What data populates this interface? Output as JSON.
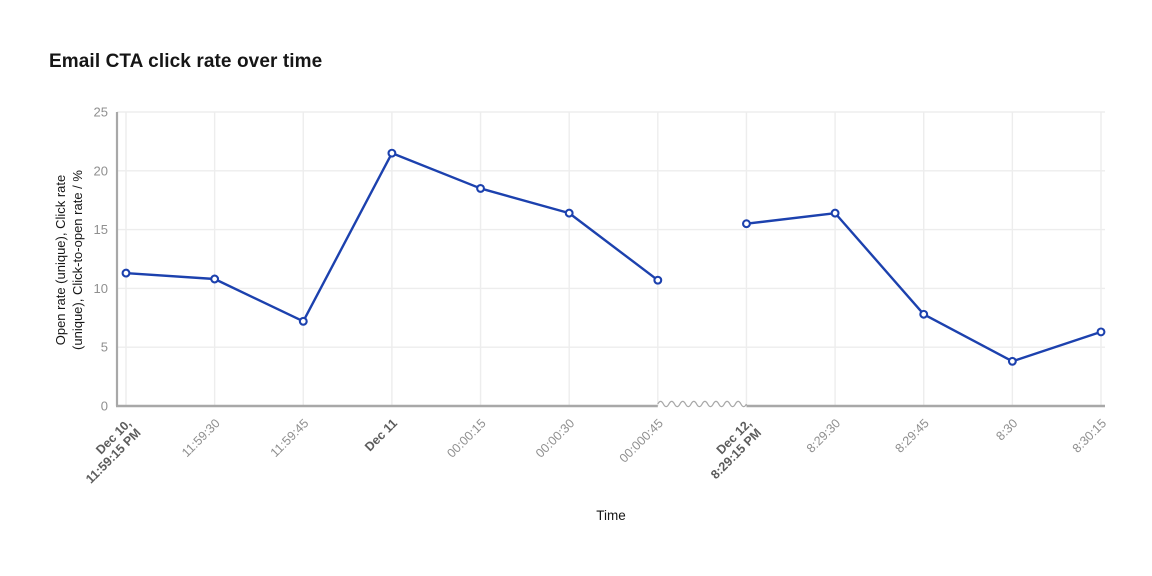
{
  "chart_data": {
    "type": "line",
    "title": "Email CTA click rate over time",
    "xlabel": "Time",
    "ylabel_lines": [
      "Open rate (unique), Click rate",
      "(unique), Click-to-open rate / %"
    ],
    "ylim": [
      0,
      25
    ],
    "yticks": [
      0,
      5,
      10,
      15,
      20,
      25
    ],
    "categories": [
      [
        "Dec 10,",
        "11:59:15 PM"
      ],
      [
        "11:59:30"
      ],
      [
        "11:59:45"
      ],
      [
        "Dec 11"
      ],
      [
        "00:00:15"
      ],
      [
        "00:00:30"
      ],
      [
        "00:000:45"
      ],
      [
        "Dec 12,",
        "8:29:15 PM"
      ],
      [
        "8:29:30"
      ],
      [
        "8:29:45"
      ],
      [
        "8:30"
      ],
      [
        "8:30:15"
      ]
    ],
    "bold_category_indexes": [
      0,
      3,
      7
    ],
    "series": [
      {
        "name": "Email CTA click rate",
        "values": [
          11.3,
          10.8,
          7.2,
          21.5,
          18.5,
          16.4,
          10.7,
          15.5,
          16.4,
          7.8,
          3.8,
          6.3
        ],
        "color": "#1c41ae"
      }
    ],
    "line_gap_after_index": 6,
    "axis_break_between": [
      "00:000:45",
      "Dec 12, 8:29:15 PM"
    ],
    "grid": true,
    "legend_position": "none",
    "marker_style": "open-circle"
  },
  "colors": {
    "background": "#ffffff",
    "axis": "#a8a8a8",
    "grid": "#ededed",
    "tick_label": "#8f8f8f",
    "tick_label_bold": "#5c5c5c",
    "text": "#161616",
    "marker_fill": "#ffffff"
  }
}
